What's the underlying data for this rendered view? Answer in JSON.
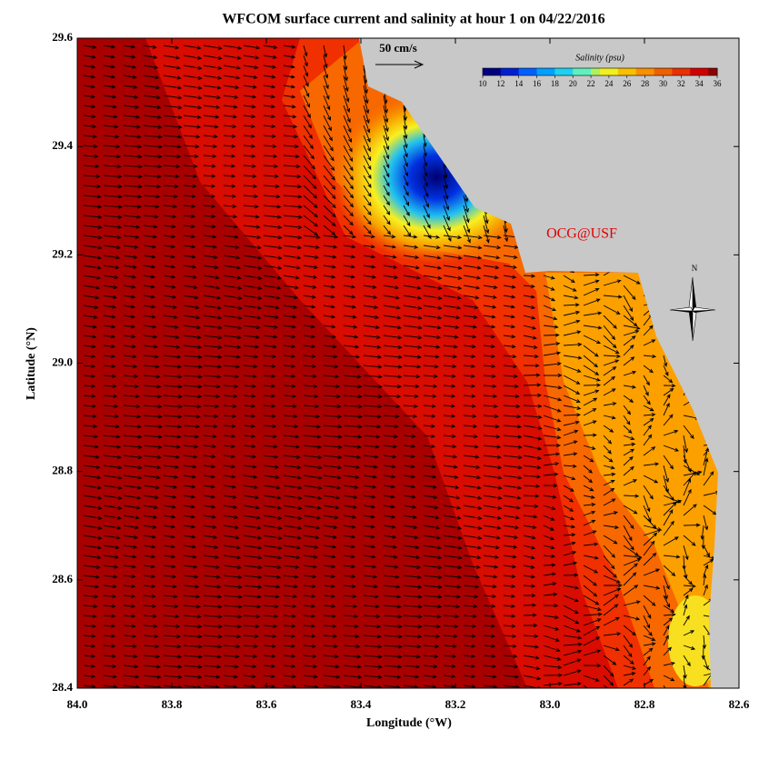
{
  "title": "WFCOM surface current and salinity at hour 1 on 04/22/2016",
  "x_axis": {
    "label": "Longitude (°W)",
    "lim": [
      84,
      82.6
    ],
    "ticks": [
      {
        "value": 84,
        "label": "84.0"
      },
      83.8,
      83.6,
      83.4,
      83.2,
      {
        "value": 83,
        "label": "83.0"
      },
      82.8,
      82.6
    ]
  },
  "y_axis": {
    "label": "Latitude (°N)",
    "lim": [
      28.4,
      29.6
    ],
    "ticks": [
      28.4,
      28.6,
      28.8,
      {
        "value": 29,
        "label": "29.0"
      },
      29.2,
      29.4,
      29.6
    ]
  },
  "colorbar": {
    "title": "Salinity (psu)",
    "lim": [
      10,
      36
    ],
    "ticks": [
      10,
      12,
      14,
      16,
      18,
      20,
      22,
      24,
      26,
      28,
      30,
      32,
      34,
      36
    ]
  },
  "scale_label": "50 cm/s",
  "credit": "OCG@USF",
  "north_label": "N"
}
